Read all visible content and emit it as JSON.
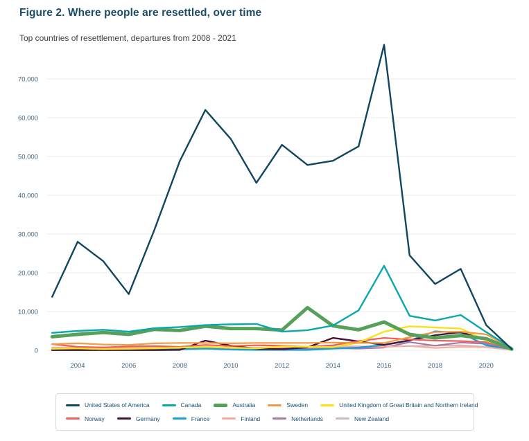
{
  "header": {
    "title": "Figure 2. Where people are resettled, over time",
    "subtitle": "Top countries of resettlement, departures from 2008 - 2021"
  },
  "colors": {
    "title_text": "#1a4c63",
    "subtitle_text": "#3f3f3f",
    "axis_text": "#3d6480",
    "gridline": "#ececec",
    "legend_border": "#d9d9d9",
    "legend_text": "#1d4f6e"
  },
  "chart_data": {
    "type": "line",
    "x": [
      2003,
      2004,
      2005,
      2006,
      2007,
      2008,
      2009,
      2010,
      2011,
      2012,
      2013,
      2014,
      2015,
      2016,
      2017,
      2018,
      2019,
      2020,
      2021
    ],
    "x_ticks": [
      2004,
      2006,
      2008,
      2010,
      2012,
      2014,
      2016,
      2018,
      2020
    ],
    "x_tick_labels": [
      "2004",
      "2006",
      "2008",
      "2010",
      "2012",
      "2014",
      "2016",
      "2018",
      "2020"
    ],
    "y_ticks": [
      0,
      10000,
      20000,
      30000,
      40000,
      50000,
      60000,
      70000
    ],
    "y_tick_labels": [
      "0",
      "10,000",
      "20,000",
      "30,000",
      "40,000",
      "50,000",
      "60,000",
      "70,000"
    ],
    "ylim": [
      0,
      79500
    ],
    "grid": "horizontal-only",
    "legend_position": "bottom-box",
    "legend_rows": [
      [
        0,
        1,
        2,
        3,
        4
      ],
      [
        5,
        6,
        7,
        8,
        9,
        10
      ]
    ],
    "series": [
      {
        "name": "United States of America",
        "color": "#12455f",
        "stroke_width": 2.4,
        "values": [
          13800,
          28000,
          23000,
          14500,
          31000,
          48800,
          62000,
          54500,
          43200,
          53000,
          47800,
          48900,
          52600,
          78800,
          24500,
          17100,
          21000,
          6500,
          300
        ]
      },
      {
        "name": "Canada",
        "color": "#0aa7ac",
        "stroke_width": 2.4,
        "values": [
          4500,
          5000,
          5300,
          4800,
          5700,
          6000,
          6500,
          6700,
          6800,
          4800,
          5200,
          6400,
          10300,
          21800,
          8900,
          7700,
          9100,
          4700,
          600
        ]
      },
      {
        "name": "Australia",
        "color": "#57a05c",
        "stroke_width": 5,
        "values": [
          3500,
          4100,
          4600,
          4100,
          5400,
          5100,
          6200,
          5600,
          5600,
          5200,
          11000,
          6300,
          5300,
          7300,
          4100,
          3200,
          3800,
          3000,
          300
        ]
      },
      {
        "name": "Sweden",
        "color": "#f39b40",
        "stroke_width": 2.2,
        "values": [
          1600,
          1800,
          1500,
          1400,
          1800,
          1900,
          1900,
          1800,
          1900,
          1900,
          1900,
          2000,
          1900,
          1900,
          3400,
          4700,
          4800,
          4100,
          500
        ]
      },
      {
        "name": "United Kingdom of Great Britain and Northern Ireland",
        "color": "#f9e11e",
        "stroke_width": 2.4,
        "values": [
          400,
          500,
          300,
          400,
          500,
          700,
          900,
          700,
          500,
          1000,
          900,
          800,
          2000,
          4800,
          6200,
          5900,
          5600,
          2500,
          400
        ]
      },
      {
        "name": "Norway",
        "color": "#ee5e5e",
        "stroke_width": 2.2,
        "values": [
          1600,
          900,
          750,
          1000,
          1100,
          900,
          1400,
          1100,
          1300,
          1200,
          900,
          1300,
          2400,
          3200,
          2800,
          2500,
          2400,
          2100,
          200
        ]
      },
      {
        "name": "Germany",
        "color": "#461338",
        "stroke_width": 2.4,
        "values": [
          50,
          50,
          50,
          50,
          50,
          100,
          2500,
          1200,
          400,
          300,
          750,
          3200,
          2300,
          1400,
          2600,
          3900,
          4700,
          2600,
          200
        ]
      },
      {
        "name": "France",
        "color": "#169fdb",
        "stroke_width": 2.4,
        "values": [
          100,
          150,
          100,
          150,
          200,
          250,
          450,
          200,
          100,
          100,
          100,
          450,
          700,
          1400,
          2500,
          4900,
          4500,
          1300,
          300
        ]
      },
      {
        "name": "Finland",
        "color": "#f5ad9e",
        "stroke_width": 2.2,
        "values": [
          550,
          750,
          700,
          550,
          700,
          750,
          700,
          550,
          550,
          750,
          900,
          1000,
          1000,
          900,
          1100,
          600,
          900,
          800,
          100
        ]
      },
      {
        "name": "Netherlands",
        "color": "#a87aa5",
        "stroke_width": 2.2,
        "values": [
          300,
          350,
          400,
          500,
          550,
          600,
          550,
          450,
          500,
          450,
          350,
          550,
          450,
          700,
          2100,
          1200,
          2000,
          1700,
          200
        ]
      },
      {
        "name": "New Zealand",
        "color": "#cdb9be",
        "stroke_width": 2.2,
        "values": [
          700,
          750,
          750,
          700,
          750,
          700,
          750,
          750,
          750,
          750,
          800,
          750,
          750,
          1000,
          1100,
          1200,
          1300,
          900,
          100
        ]
      }
    ]
  }
}
